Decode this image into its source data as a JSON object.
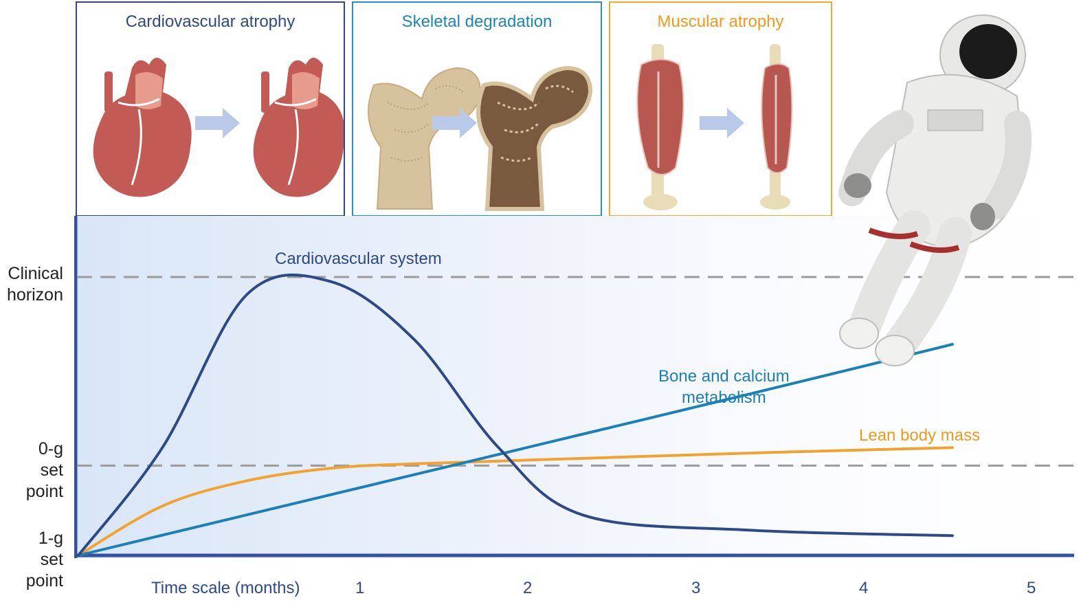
{
  "panels": {
    "cardio": {
      "title": "Cardiovascular atrophy",
      "color": "#2d4a86"
    },
    "skeletal": {
      "title": "Skeletal degradation",
      "color": "#1f85b8"
    },
    "muscular": {
      "title": "Muscular atrophy",
      "color": "#ef9a1b"
    }
  },
  "y_axis_labels": {
    "clinical_horizon": [
      "Clinical",
      "horizon"
    ],
    "zero_g": [
      "0-g",
      "set",
      "point"
    ],
    "one_g": [
      "1-g",
      "set",
      "point"
    ]
  },
  "x_axis": {
    "title": "Time scale (months)",
    "ticks": [
      "1",
      "2",
      "3",
      "4",
      "5"
    ]
  },
  "chart_data": {
    "type": "line",
    "x_range": [
      0,
      5.2
    ],
    "y_levels": {
      "one_g_set_point": 0,
      "zero_g_set_point": 1,
      "clinical_horizon": 3.1
    },
    "reference_lines": [
      {
        "name": "Clinical horizon",
        "y": 3.1,
        "style": "dashed"
      },
      {
        "name": "0-g set point",
        "y": 1,
        "style": "dashed"
      }
    ],
    "series": [
      {
        "name": "Cardiovascular system",
        "color": "#2d4a86",
        "x": [
          0,
          0.5,
          1.0,
          1.5,
          2.0,
          2.5,
          3.0,
          4.0,
          5.2
        ],
        "y": [
          0,
          1.2,
          2.9,
          3.05,
          2.4,
          1.2,
          0.45,
          0.28,
          0.22
        ]
      },
      {
        "name": "Bone and calcium metabolism",
        "color": "#1b7fb8",
        "x": [
          0,
          1,
          2,
          3,
          4,
          5.2
        ],
        "y": [
          0,
          0.45,
          0.9,
          1.35,
          1.8,
          2.35
        ]
      },
      {
        "name": "Lean body mass",
        "color": "#f2a22e",
        "x": [
          0,
          0.5,
          1,
          1.5,
          2,
          3,
          4,
          5.2
        ],
        "y": [
          0,
          0.55,
          0.83,
          0.97,
          1.02,
          1.08,
          1.14,
          1.2
        ]
      }
    ]
  },
  "series_labels": {
    "cardio": "Cardiovascular system",
    "bone": [
      "Bone and calcium",
      "metabolism"
    ],
    "lean": "Lean body mass"
  }
}
